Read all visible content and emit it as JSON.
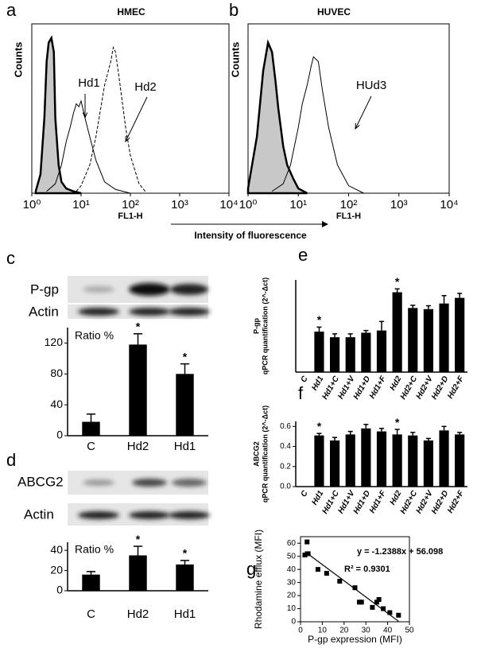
{
  "figure_label": "Intensity of fluorescence",
  "chart_data": [
    {
      "panel": "a",
      "type": "line",
      "title": "HMEC",
      "xlabel": "FL1-H",
      "ylabel": "Counts",
      "xscale": "log",
      "xlim": [
        1,
        10000
      ],
      "xticks": [
        {
          "value": 1,
          "label": "10⁰"
        },
        {
          "value": 10,
          "label": "10¹"
        },
        {
          "value": 100,
          "label": "10²"
        },
        {
          "value": 1000,
          "label": "10³"
        },
        {
          "value": 10000,
          "label": "10⁴"
        }
      ],
      "ylim": [
        0,
        180
      ],
      "series": [
        {
          "color": "#000000",
          "fill": "#c8c8c8",
          "width": 2.5,
          "x": [
            1.2,
            1.5,
            1.8,
            2,
            2.2,
            2.5,
            2.8,
            3,
            3.5,
            4,
            5,
            7,
            10
          ],
          "values": [
            2,
            20,
            80,
            140,
            160,
            165,
            150,
            80,
            30,
            12,
            5,
            2,
            0
          ]
        },
        {
          "name": "Hd1",
          "color": "#000000",
          "width": 1,
          "x": [
            2,
            3,
            4,
            5,
            6,
            7,
            8,
            9,
            10,
            12,
            15,
            20,
            30,
            50,
            100
          ],
          "values": [
            2,
            10,
            30,
            55,
            70,
            85,
            95,
            92,
            98,
            80,
            60,
            35,
            12,
            4,
            0
          ]
        },
        {
          "name": "Hd2",
          "color": "#000000",
          "width": 1,
          "dash": true,
          "x": [
            8,
            10,
            15,
            20,
            25,
            30,
            40,
            45,
            50,
            60,
            80,
            100,
            150,
            200
          ],
          "values": [
            2,
            8,
            30,
            60,
            90,
            115,
            140,
            155,
            150,
            120,
            70,
            40,
            10,
            2
          ]
        }
      ]
    },
    {
      "panel": "b",
      "type": "line",
      "title": "HUVEC",
      "xlabel": "FL1-H",
      "ylabel": "Counts",
      "xscale": "log",
      "xlim": [
        1,
        10000
      ],
      "xticks": [
        {
          "value": 1,
          "label": "10⁰"
        },
        {
          "value": 10,
          "label": "10¹"
        },
        {
          "value": 100,
          "label": "10²"
        },
        {
          "value": 1000,
          "label": "10³"
        },
        {
          "value": 10000,
          "label": "10⁴"
        }
      ],
      "ylim": [
        0,
        180
      ],
      "series": [
        {
          "color": "#000000",
          "fill": "#c8c8c8",
          "width": 2.5,
          "x": [
            1,
            1.5,
            2,
            2.5,
            3,
            3.5,
            4,
            5,
            6,
            8,
            10,
            15
          ],
          "values": [
            5,
            60,
            130,
            160,
            150,
            120,
            90,
            50,
            30,
            15,
            5,
            0
          ]
        },
        {
          "name": "HUd3",
          "color": "#000000",
          "width": 1,
          "x": [
            3,
            5,
            7,
            10,
            12,
            15,
            18,
            20,
            25,
            30,
            40,
            60,
            100,
            200
          ],
          "values": [
            2,
            10,
            30,
            70,
            95,
            115,
            135,
            145,
            140,
            110,
            70,
            30,
            8,
            0
          ]
        }
      ]
    },
    {
      "panel": "c",
      "type": "bar",
      "blot_labels": [
        "P-gp",
        "Actin"
      ],
      "ylabel": "Ratio %",
      "color": "#000000",
      "categories": [
        "C",
        "Hd2",
        "Hd1"
      ],
      "values": [
        18,
        118,
        80
      ],
      "errors": [
        10,
        14,
        13
      ],
      "asterisks": [
        null,
        "*",
        "*"
      ],
      "ylim": [
        0,
        140
      ],
      "yticks": [
        0,
        40,
        80,
        120
      ]
    },
    {
      "panel": "d",
      "type": "bar",
      "blot_labels": [
        "ABCG2",
        "Actin"
      ],
      "ylabel": "Ratio %",
      "color": "#000000",
      "categories": [
        "C",
        "Hd2",
        "Hd1"
      ],
      "values": [
        16,
        35,
        26
      ],
      "errors": [
        3,
        9,
        4
      ],
      "asterisks": [
        null,
        "*",
        "*"
      ],
      "ylim": [
        0,
        48
      ],
      "yticks": [
        0,
        20,
        40
      ]
    },
    {
      "panel": "e",
      "type": "bar",
      "ylabel_title": "P-gp",
      "ylabel": "qPCR quantification (2^-Δct)",
      "color": "#000000",
      "categories": [
        "C",
        "Hd1",
        "Hd1+C",
        "Hd1+V",
        "Hd1+D",
        "Hd1+F",
        "Hd2",
        "Hd2+C",
        "Hd2+V",
        "Hd2+D",
        "Hd2+F"
      ],
      "values": [
        null,
        1.8,
        1.55,
        1.55,
        1.75,
        1.85,
        3.55,
        2.85,
        2.8,
        3.05,
        3.3
      ],
      "errors": [
        null,
        0.2,
        0.15,
        0.15,
        0.1,
        0.4,
        0.15,
        0.12,
        0.15,
        0.35,
        0.2
      ],
      "asterisks": [
        null,
        "*",
        null,
        null,
        null,
        null,
        "*",
        null,
        null,
        null,
        null
      ],
      "ylim": [
        0,
        4.1
      ]
    },
    {
      "panel": "f",
      "type": "bar",
      "ylabel_title": "ABCG2",
      "ylabel": "qPCR quantification (2^-Δct)",
      "color": "#000000",
      "categories": [
        "C",
        "Hd1",
        "Hd1+C",
        "Hd1+V",
        "Hd1+D",
        "Hd1+F",
        "Hd2",
        "Hd2+C",
        "Hd2+V",
        "Hd2+D",
        "Hd2+F"
      ],
      "values": [
        null,
        0.51,
        0.46,
        0.52,
        0.58,
        0.55,
        0.52,
        0.51,
        0.46,
        0.56,
        0.52
      ],
      "errors": [
        null,
        0.02,
        0.03,
        0.03,
        0.04,
        0.03,
        0.05,
        0.03,
        0.02,
        0.04,
        0.02
      ],
      "asterisks": [
        null,
        "*",
        null,
        null,
        null,
        null,
        "*",
        null,
        null,
        null,
        null
      ],
      "ylim": [
        0,
        0.65
      ],
      "yticks": [
        {
          "value": 0,
          "label": "0.0"
        },
        0.2,
        0.4,
        0.6
      ]
    },
    {
      "panel": "g",
      "type": "scatter",
      "xlabel": "P-gp expression (MFI)",
      "ylabel": "Rhodamine efflux (MFI)",
      "color": "#000000",
      "x": [
        2,
        3,
        3.5,
        8,
        12,
        18,
        25,
        27,
        28,
        33,
        35,
        36,
        38,
        41,
        45
      ],
      "values": [
        51,
        61,
        52,
        40,
        37,
        31,
        26,
        15,
        15,
        11,
        15,
        17,
        10,
        7,
        5
      ],
      "xlim": [
        0,
        50
      ],
      "xticks": [
        0,
        10,
        20,
        30,
        40,
        50
      ],
      "ylim": [
        0,
        65
      ],
      "yticks": [
        0,
        10,
        20,
        30,
        40,
        50,
        60
      ],
      "annotations": [
        "y = -1.2388x + 56.098",
        "R² = 0.9301"
      ],
      "fit_line": {
        "slope": -1.2388,
        "intercept": 56.098
      }
    }
  ]
}
